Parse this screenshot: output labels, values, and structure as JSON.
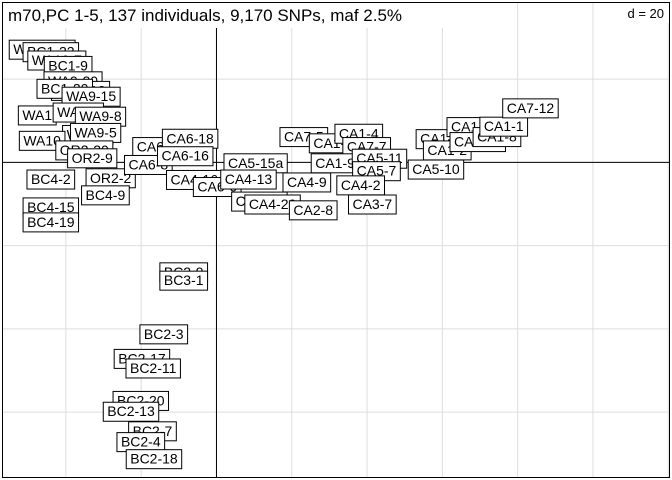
{
  "chart_data": {
    "type": "scatter",
    "title": "m70,PC 1-5, 137 individuals, 9,170 SNPs, maf 2.5%",
    "scale_label": "d = 20",
    "grid_step": 20,
    "xlim": [
      -56.7,
      120.2
    ],
    "ylim": [
      -75.6,
      38.3
    ],
    "grid": true,
    "colors": {
      "grid": "#dddddd",
      "axis": "#000000",
      "box": "#000000"
    },
    "points": [
      {
        "label": "WA10-16",
        "x": -46.3,
        "y": 27.2
      },
      {
        "label": "BC1-22",
        "x": -44.0,
        "y": 26.6
      },
      {
        "label": "WA10-7",
        "x": -42.4,
        "y": 24.6
      },
      {
        "label": "BC1-9",
        "x": -39.4,
        "y": 23.3
      },
      {
        "label": "WA9-20",
        "x": -38.1,
        "y": 19.6
      },
      {
        "label": "WA9-12",
        "x": -36.1,
        "y": 17.3
      },
      {
        "label": "BC1-20",
        "x": -40.3,
        "y": 17.8
      },
      {
        "label": "WA9-15",
        "x": -33.3,
        "y": 15.9
      },
      {
        "label": "WA1",
        "x": -47.6,
        "y": 11.4
      },
      {
        "label": "WA9-3",
        "x": -36.7,
        "y": 12.1
      },
      {
        "label": "WA9-8",
        "x": -30.8,
        "y": 11.1
      },
      {
        "label": "WA9-1",
        "x": -34.2,
        "y": 6.7
      },
      {
        "label": "WA9-5",
        "x": -32.1,
        "y": 7.2
      },
      {
        "label": "WA10",
        "x": -46.3,
        "y": 5.3
      },
      {
        "label": "OR2-20",
        "x": -35.1,
        "y": 3.0
      },
      {
        "label": "OR2-9",
        "x": -33.0,
        "y": 1.1
      },
      {
        "label": "BC4-2",
        "x": -44.0,
        "y": -4.0
      },
      {
        "label": "OR2-2",
        "x": -28.1,
        "y": -3.7
      },
      {
        "label": "BC4-9",
        "x": -29.5,
        "y": -7.8
      },
      {
        "label": "BC4-15",
        "x": -44.0,
        "y": -10.7
      },
      {
        "label": "BC4-19",
        "x": -44.0,
        "y": -14.3
      },
      {
        "label": "CA6-2",
        "x": -15.9,
        "y": 3.8
      },
      {
        "label": "CA6-18",
        "x": -7.0,
        "y": 5.8
      },
      {
        "label": "CA6-8",
        "x": -18.1,
        "y": -0.5
      },
      {
        "label": "CA6-16",
        "x": -8.3,
        "y": 1.6
      },
      {
        "label": "CA4-16",
        "x": -5.9,
        "y": -4.1
      },
      {
        "label": "CA6-6",
        "x": 0.2,
        "y": -5.8
      },
      {
        "label": "CA5-15a",
        "x": 10.4,
        "y": -0.1
      },
      {
        "label": "CA4-13",
        "x": 8.5,
        "y": -4.0
      },
      {
        "label": "CA4-14",
        "x": 11.4,
        "y": -9.3
      },
      {
        "label": "CA4-20",
        "x": 14.9,
        "y": -10.0
      },
      {
        "label": "CA4-9",
        "x": 24.0,
        "y": -4.7
      },
      {
        "label": "CA2-8",
        "x": 25.7,
        "y": -11.4
      },
      {
        "label": "CA7-5",
        "x": 23.2,
        "y": 6.2
      },
      {
        "label": "CA1-5",
        "x": 31.0,
        "y": 4.7
      },
      {
        "label": "CA1-4",
        "x": 37.8,
        "y": 7.0
      },
      {
        "label": "CA7-7",
        "x": 39.9,
        "y": 3.8
      },
      {
        "label": "CA1-9",
        "x": 31.5,
        "y": -0.1
      },
      {
        "label": "CA5-11",
        "x": 43.3,
        "y": 1.0
      },
      {
        "label": "CA5-7",
        "x": 42.5,
        "y": -2.0
      },
      {
        "label": "CA4-2",
        "x": 38.3,
        "y": -5.4
      },
      {
        "label": "CA3-7",
        "x": 41.4,
        "y": -10.0
      },
      {
        "label": "CA5-10",
        "x": 58.3,
        "y": -1.6
      },
      {
        "label": "CA1-22",
        "x": 60.4,
        "y": 5.7
      },
      {
        "label": "CA1-2",
        "x": 61.3,
        "y": 3.0
      },
      {
        "label": "CA1-15",
        "x": 68.6,
        "y": 8.6
      },
      {
        "label": "CA1-19",
        "x": 69.4,
        "y": 5.0
      },
      {
        "label": "CA1-8",
        "x": 74.5,
        "y": 6.2
      },
      {
        "label": "CA1-1",
        "x": 76.3,
        "y": 8.7
      },
      {
        "label": "CA7-12",
        "x": 83.4,
        "y": 13.1
      },
      {
        "label": "BC2-9",
        "x": -8.7,
        "y": -26.3
      },
      {
        "label": "BC3-1",
        "x": -8.7,
        "y": -28.3
      },
      {
        "label": "BC2-3",
        "x": -14.0,
        "y": -41.2
      },
      {
        "label": "BC2-17",
        "x": -19.8,
        "y": -47.1
      },
      {
        "label": "BC2-11",
        "x": -16.8,
        "y": -49.4
      },
      {
        "label": "BC2-20",
        "x": -20.1,
        "y": -57.2
      },
      {
        "label": "BC2-13",
        "x": -22.7,
        "y": -59.8
      },
      {
        "label": "BC2-7",
        "x": -17.0,
        "y": -64.5
      },
      {
        "label": "BC2-4",
        "x": -20.1,
        "y": -67.1
      },
      {
        "label": "BC2-18",
        "x": -16.6,
        "y": -71.2
      }
    ]
  }
}
